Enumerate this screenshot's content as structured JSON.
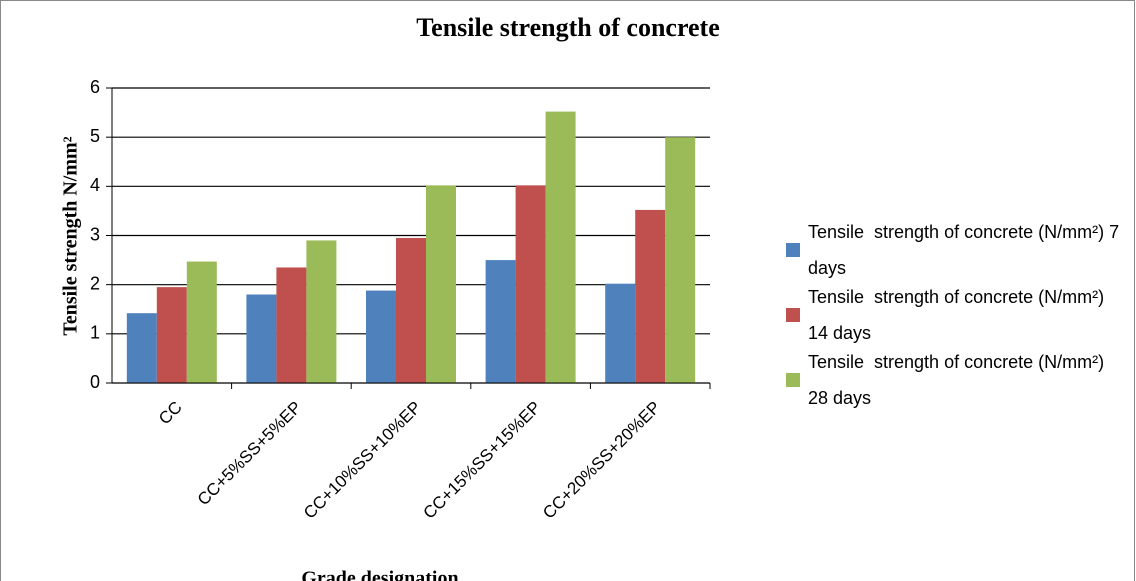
{
  "chart_data": {
    "type": "bar",
    "title": "Tensile strength of concrete",
    "x_label": "Grade designation",
    "y_label": "Tensile strength N/mm²",
    "categories": [
      "CC",
      "CC+5%SS+5%EP",
      "CC+10%SS+10%EP",
      "CC+15%SS+15%EP",
      "CC+20%SS+20%EP"
    ],
    "series": [
      {
        "name": "Tensile  strength of concrete (N/mm²) 7 days",
        "color": "#4f81bd",
        "values": [
          1.42,
          1.8,
          1.88,
          2.5,
          2.02
        ]
      },
      {
        "name": "Tensile  strength of concrete (N/mm²) 14 days",
        "color": "#c0504d",
        "values": [
          1.95,
          2.35,
          2.95,
          4.02,
          3.52
        ]
      },
      {
        "name": "Tensile  strength of concrete (N/mm²) 28 days",
        "color": "#9bbb59",
        "values": [
          2.47,
          2.9,
          4.02,
          5.52,
          5.0
        ]
      }
    ],
    "ylim": [
      0,
      6
    ],
    "yticks": [
      0,
      1,
      2,
      3,
      4,
      5,
      6
    ],
    "grid": true,
    "legend": "right"
  }
}
